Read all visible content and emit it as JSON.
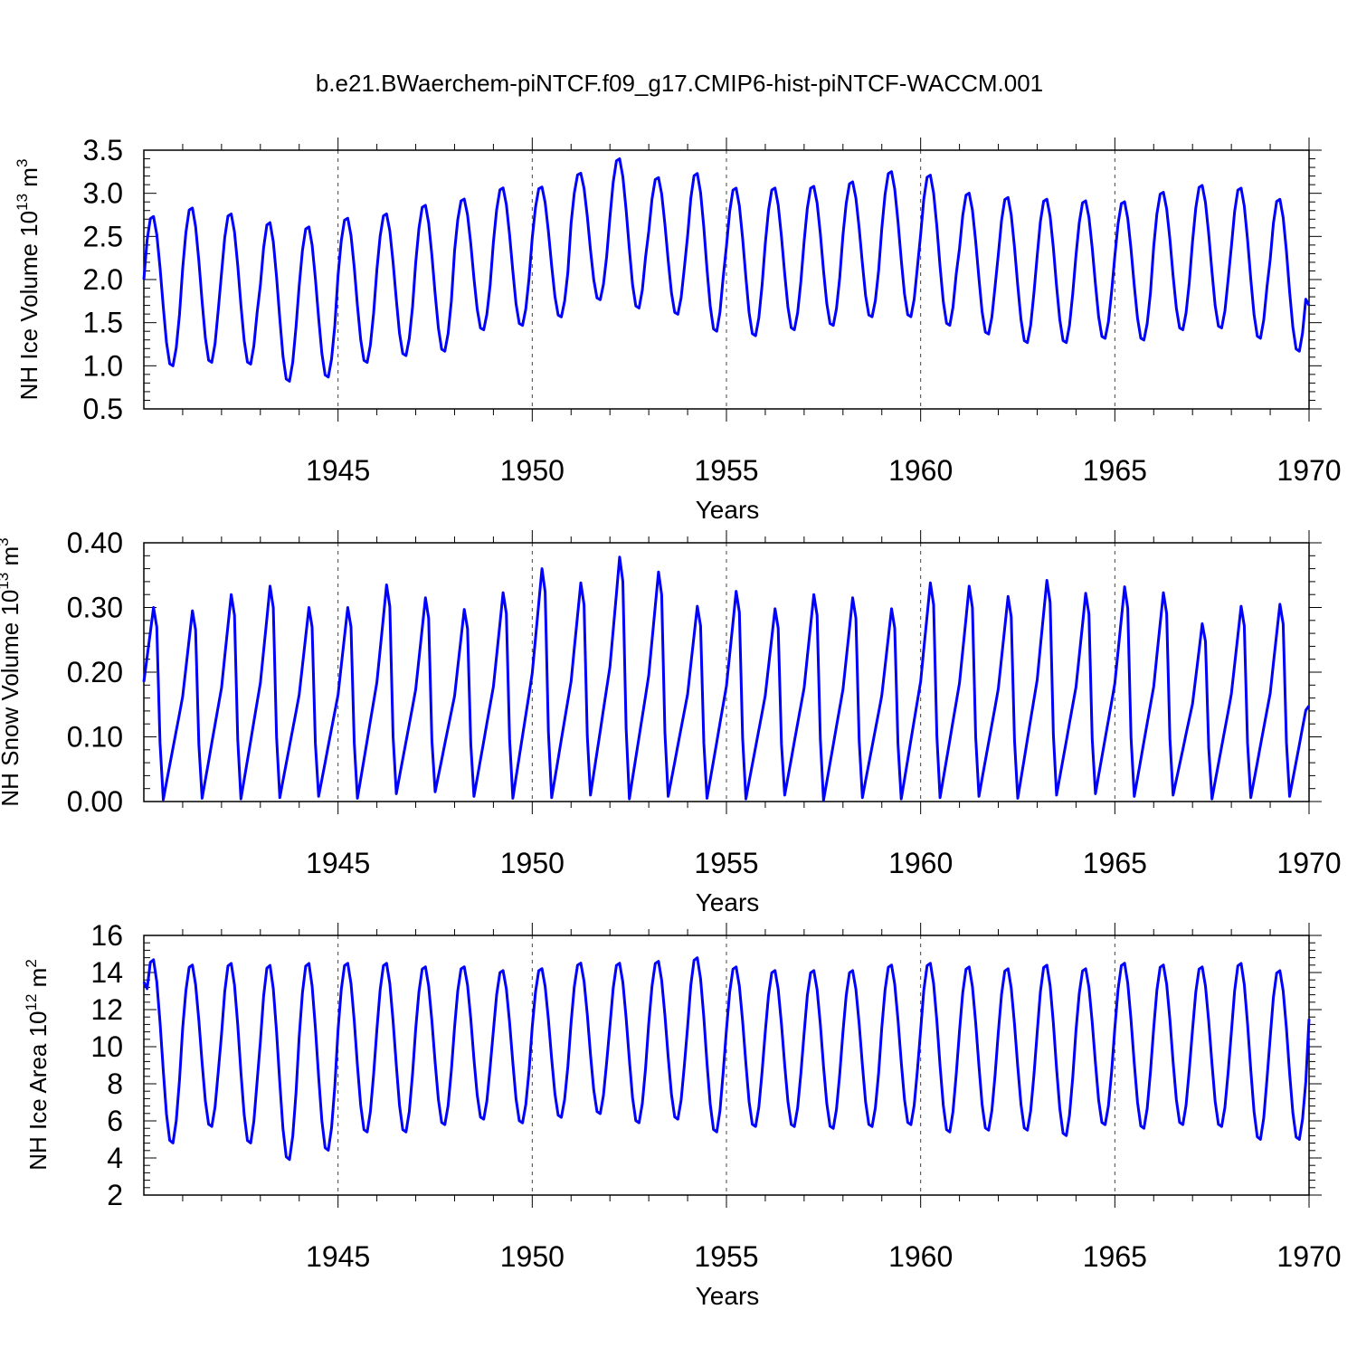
{
  "title": "b.e21.BWaerchem-piNTCF.f09_g17.CMIP6-hist-piNTCF-WACCM.001",
  "series_color": "#0000ff",
  "chart_data": [
    {
      "type": "line",
      "xlabel": "Years",
      "ylabel": {
        "base": "NH Ice Volume 10",
        "sup1": "13",
        "mid": " m",
        "sup2": "3"
      },
      "xlim": [
        1940,
        1970
      ],
      "ylim": [
        0.5,
        3.5
      ],
      "xticks": [
        1945,
        1950,
        1955,
        1960,
        1965,
        1970
      ],
      "xtick_labels": [
        "1945",
        "1950",
        "1955",
        "1960",
        "1965",
        "1970"
      ],
      "yticks": [
        0.5,
        1.0,
        1.5,
        2.0,
        2.5,
        3.0,
        3.5
      ],
      "ytick_labels": [
        "0.5",
        "1.0",
        "1.5",
        "2.0",
        "2.5",
        "3.0",
        "3.5"
      ],
      "ymin_value": 0.5,
      "annual_max": [
        2.75,
        2.85,
        2.78,
        2.68,
        2.63,
        2.73,
        2.78,
        2.88,
        2.95,
        3.08,
        3.09,
        3.25,
        3.42,
        3.2,
        3.25,
        3.08,
        3.08,
        3.1,
        3.15,
        3.27,
        3.23,
        3.02,
        2.97,
        2.95,
        2.93,
        2.92,
        3.03,
        3.11,
        3.08,
        2.95
      ],
      "annual_min": [
        0.98,
        1.02,
        1.0,
        0.8,
        0.85,
        1.02,
        1.1,
        1.15,
        1.4,
        1.45,
        1.55,
        1.75,
        1.65,
        1.58,
        1.38,
        1.33,
        1.4,
        1.45,
        1.55,
        1.55,
        1.45,
        1.35,
        1.25,
        1.25,
        1.3,
        1.28,
        1.4,
        1.42,
        1.3,
        1.15
      ],
      "start_value": 2.0,
      "end_value": 1.7
    },
    {
      "type": "line",
      "xlabel": "Years",
      "ylabel": {
        "base": "NH Snow Volume 10",
        "sup1": "13",
        "mid": " m",
        "sup2": "3"
      },
      "xlim": [
        1940,
        1970
      ],
      "ylim": [
        0.0,
        0.4
      ],
      "xticks": [
        1945,
        1950,
        1955,
        1960,
        1965,
        1970
      ],
      "xtick_labels": [
        "1945",
        "1950",
        "1955",
        "1960",
        "1965",
        "1970"
      ],
      "yticks": [
        0.0,
        0.1,
        0.2,
        0.3,
        0.4
      ],
      "ytick_labels": [
        "0.00",
        "0.10",
        "0.20",
        "0.30",
        "0.40"
      ],
      "ymin_value": 0.0,
      "annual_max": [
        0.3,
        0.295,
        0.32,
        0.333,
        0.3,
        0.3,
        0.335,
        0.315,
        0.297,
        0.323,
        0.36,
        0.338,
        0.378,
        0.355,
        0.302,
        0.325,
        0.298,
        0.32,
        0.315,
        0.298,
        0.338,
        0.333,
        0.317,
        0.342,
        0.322,
        0.332,
        0.323,
        0.275,
        0.302,
        0.305
      ],
      "annual_min": [
        0.003,
        0.005,
        0.004,
        0.006,
        0.008,
        0.005,
        0.012,
        0.015,
        0.008,
        0.005,
        0.006,
        0.01,
        0.004,
        0.008,
        0.005,
        0.004,
        0.01,
        0.002,
        0.006,
        0.004,
        0.006,
        0.008,
        0.005,
        0.01,
        0.012,
        0.008,
        0.01,
        0.004,
        0.006,
        0.008
      ],
      "start_value": 0.185,
      "end_value": 0.148
    },
    {
      "type": "line",
      "xlabel": "Years",
      "ylabel": {
        "base": "NH Ice Area 10",
        "sup1": "12",
        "mid": " m",
        "sup2": "2"
      },
      "xlim": [
        1940,
        1970
      ],
      "ylim": [
        2,
        16
      ],
      "xticks": [
        1945,
        1950,
        1955,
        1960,
        1965,
        1970
      ],
      "xtick_labels": [
        "1945",
        "1950",
        "1955",
        "1960",
        "1965",
        "1970"
      ],
      "yticks": [
        2,
        4,
        6,
        8,
        10,
        12,
        14,
        16
      ],
      "ytick_labels": [
        "2",
        "4",
        "6",
        "8",
        "10",
        "12",
        "14",
        "16"
      ],
      "ymin_value": 2,
      "annual_max": [
        14.8,
        14.5,
        14.6,
        14.5,
        14.6,
        14.6,
        14.6,
        14.4,
        14.4,
        14.2,
        14.3,
        14.6,
        14.6,
        14.7,
        14.9,
        14.4,
        14.2,
        14.2,
        14.2,
        14.5,
        14.6,
        14.4,
        14.3,
        14.5,
        14.3,
        14.6,
        14.5,
        14.4,
        14.6,
        14.2
      ],
      "annual_min": [
        4.7,
        5.6,
        4.7,
        3.8,
        4.3,
        5.3,
        5.3,
        5.7,
        6.0,
        5.8,
        6.1,
        6.3,
        5.8,
        6.0,
        5.3,
        5.6,
        5.6,
        5.5,
        5.6,
        5.7,
        5.3,
        5.4,
        5.4,
        5.1,
        5.7,
        5.5,
        5.7,
        5.6,
        4.9,
        4.9
      ],
      "start_value": 13.5,
      "end_value": 11.5
    }
  ]
}
